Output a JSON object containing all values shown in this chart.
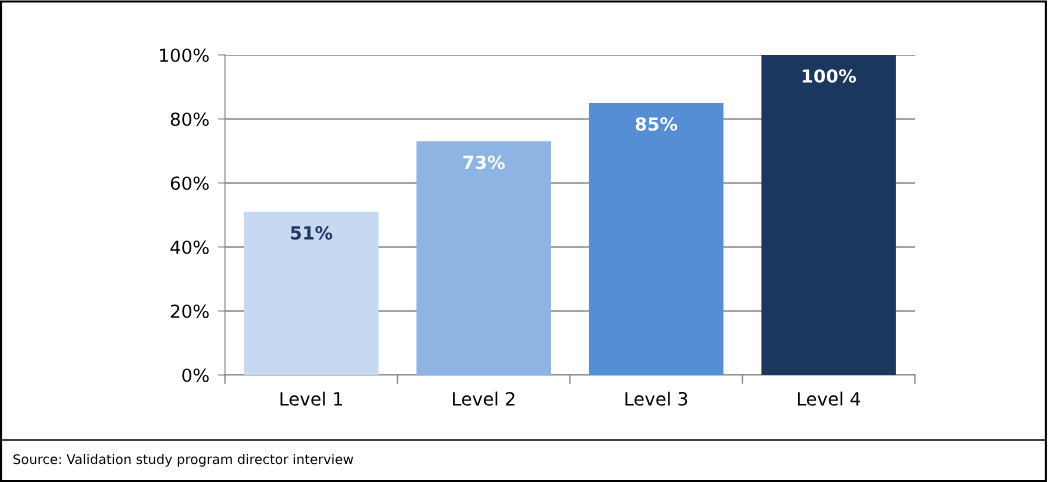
{
  "chart_data": {
    "type": "bar",
    "categories": [
      "Level 1",
      "Level 2",
      "Level 3",
      "Level 4"
    ],
    "values": [
      51,
      73,
      85,
      100
    ],
    "colors": [
      "#c6d9f1",
      "#8eb4e3",
      "#558ed5",
      "#1c375e"
    ],
    "ylim": [
      0,
      100
    ],
    "yticks": [
      {
        "value": 0,
        "label": "0%"
      },
      {
        "value": 20,
        "label": "20%"
      },
      {
        "value": 40,
        "label": "40%"
      },
      {
        "value": 60,
        "label": "60%"
      },
      {
        "value": 80,
        "label": "80%"
      },
      {
        "value": 100,
        "label": "100%"
      }
    ],
    "value_labels": [
      "51%",
      "73%",
      "85%",
      "100%"
    ],
    "grid": "y",
    "legend": false,
    "annotations": [
      "Source: Validation study program director interview"
    ]
  }
}
